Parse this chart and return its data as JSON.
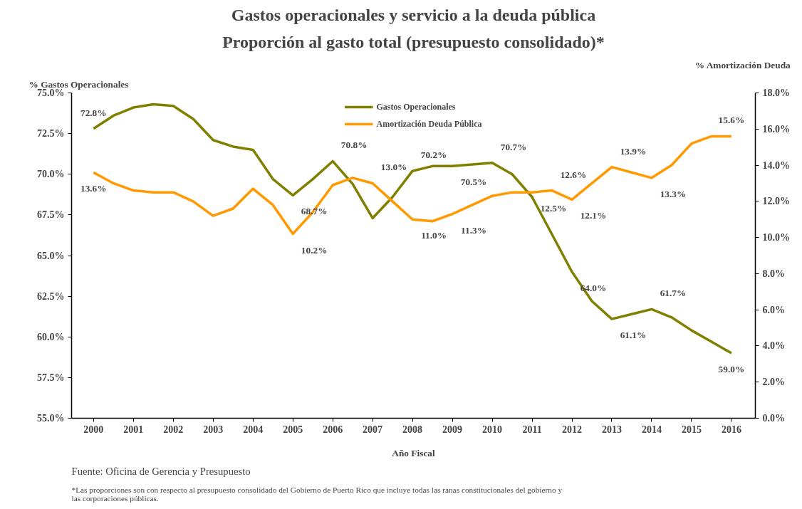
{
  "chart_data": {
    "type": "line",
    "title": "Gastos operacionales y servicio a la deuda pública",
    "subtitle": "Proporción al gasto total (presupuesto consolidado)*",
    "xlabel": "Año Fiscal",
    "ylabel": "% Gastos Operacionales",
    "y2label": "% Amortización Deuda",
    "x": [
      2000,
      2000.5,
      2001,
      2001.5,
      2002,
      2002.5,
      2003,
      2003.5,
      2004,
      2004.5,
      2005,
      2005.5,
      2006,
      2006.5,
      2007,
      2007.5,
      2008,
      2008.5,
      2009,
      2009.5,
      2010,
      2010.5,
      2011,
      2011.5,
      2012,
      2012.5,
      2013,
      2013.5,
      2014,
      2014.5,
      2015,
      2015.5,
      2016
    ],
    "xlim": [
      1999.45,
      2016.6
    ],
    "xticks": [
      2000,
      2001,
      2002,
      2003,
      2004,
      2005,
      2006,
      2007,
      2008,
      2009,
      2010,
      2011,
      2012,
      2013,
      2014,
      2015,
      2016
    ],
    "ylim": [
      55,
      75
    ],
    "yticks": [
      {
        "value": 55,
        "label": "55.0%"
      },
      {
        "value": 57.5,
        "label": "57.5%"
      },
      {
        "value": 60,
        "label": "60.0%"
      },
      {
        "value": 62.5,
        "label": "62.5%"
      },
      {
        "value": 65,
        "label": "65.0%"
      },
      {
        "value": 67.5,
        "label": "67.5%"
      },
      {
        "value": 70,
        "label": "70.0%"
      },
      {
        "value": 72.5,
        "label": "72.5%"
      },
      {
        "value": 75,
        "label": "75.0%"
      }
    ],
    "y2lim": [
      0,
      18
    ],
    "y2ticks": [
      {
        "value": 0,
        "label": "0.0%"
      },
      {
        "value": 2,
        "label": "2.0%"
      },
      {
        "value": 4,
        "label": "4.0%"
      },
      {
        "value": 6,
        "label": "6.0%"
      },
      {
        "value": 8,
        "label": "8.0%"
      },
      {
        "value": 10,
        "label": "10.0%"
      },
      {
        "value": 12,
        "label": "12.0%"
      },
      {
        "value": 14,
        "label": "14.0%"
      },
      {
        "value": 16,
        "label": "16.0%"
      },
      {
        "value": 18,
        "label": "18.0%"
      }
    ],
    "series": [
      {
        "name": "Gastos Operacionales",
        "color": "#808000",
        "values": [
          72.8,
          73.6,
          74.1,
          74.3,
          74.2,
          73.4,
          72.1,
          71.7,
          71.5,
          69.7,
          68.7,
          69.7,
          70.8,
          69.4,
          67.3,
          68.6,
          70.2,
          70.5,
          70.5,
          70.6,
          70.7,
          70.0,
          68.6,
          66.3,
          64.0,
          62.2,
          61.1,
          61.4,
          61.7,
          61.2,
          60.4,
          59.7,
          59.0
        ],
        "value_labels": [
          "72.8%",
          null,
          null,
          null,
          null,
          null,
          null,
          null,
          null,
          null,
          "68.7%",
          null,
          "70.8%",
          null,
          null,
          null,
          "70.2%",
          null,
          "70.5%",
          null,
          "70.7%",
          null,
          null,
          null,
          "64.0%",
          null,
          "61.1%",
          null,
          "61.7%",
          null,
          null,
          null,
          "59.0%"
        ]
      },
      {
        "name": "Amortización Deuda Pública",
        "color": "#ff9900",
        "axis": "y2",
        "values": [
          13.6,
          13.0,
          12.6,
          12.5,
          12.5,
          12.0,
          11.2,
          11.6,
          12.7,
          11.8,
          10.2,
          11.4,
          12.9,
          13.3,
          13.0,
          12.0,
          11.0,
          10.9,
          11.3,
          11.8,
          12.3,
          12.5,
          12.5,
          12.6,
          12.1,
          13.0,
          13.9,
          13.6,
          13.3,
          14.0,
          15.2,
          15.6,
          15.6
        ],
        "value_labels": [
          "13.6%",
          null,
          null,
          null,
          null,
          null,
          null,
          null,
          null,
          null,
          "10.2%",
          null,
          null,
          null,
          "13.0%",
          null,
          "11.0%",
          null,
          "11.3%",
          null,
          null,
          null,
          "12.5%",
          "12.6%",
          "12.1%",
          null,
          "13.9%",
          null,
          "13.3%",
          null,
          null,
          null,
          "15.6%"
        ]
      }
    ],
    "legend": "top",
    "grid": false,
    "marker": "none",
    "line_style": "solid",
    "annotations": [
      "Fuente: Oficina de Gerencia y Presupuesto",
      "*Las proporciones son con respecto al presupuesto consolidado del  Gobierno de Puerto Rico que incluye todas las ranas constitucionales del gobierno y las corporaciones públicas."
    ]
  }
}
